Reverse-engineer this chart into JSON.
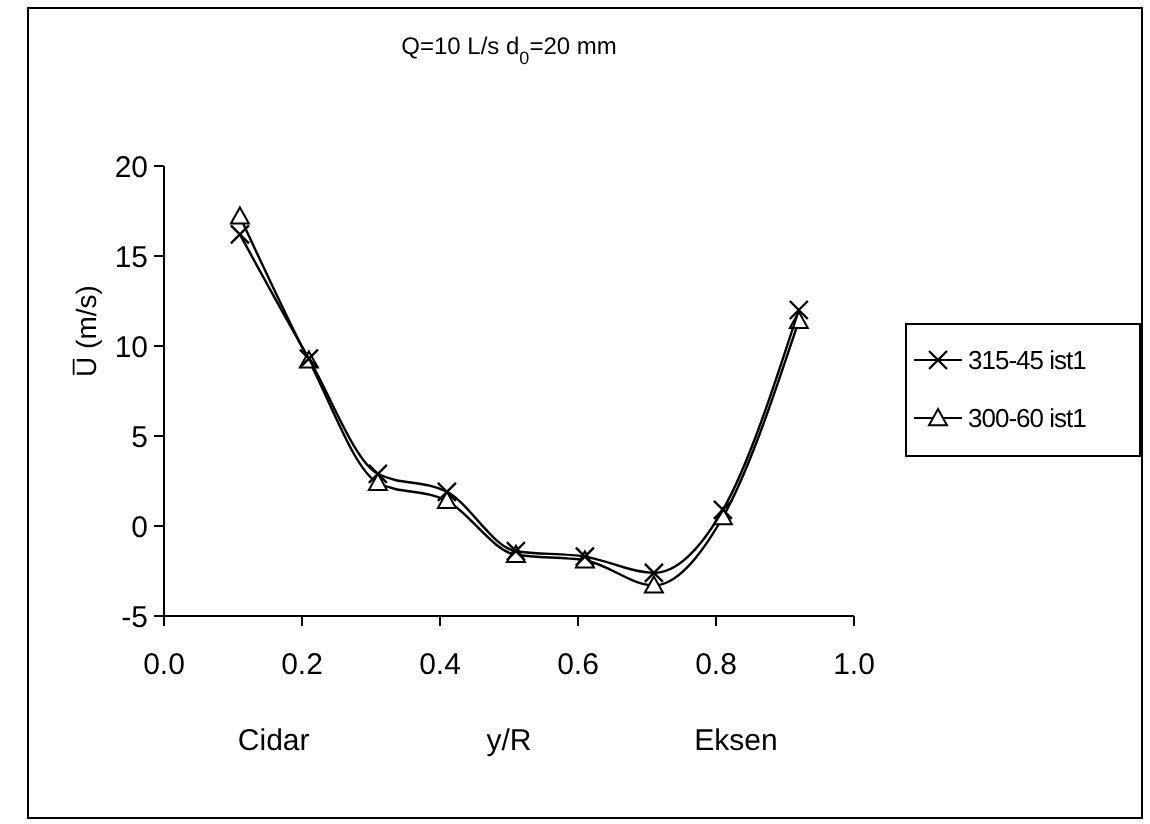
{
  "chart_data": {
    "type": "line",
    "title": "Q=10 L/s  d$_{0}$=20 mm",
    "xlabel": "y/R",
    "ylabel": "U̅ (m/s)",
    "annotations": [
      "Cidar",
      "Eksen"
    ],
    "x": [
      0.11,
      0.21,
      0.31,
      0.41,
      0.51,
      0.61,
      0.71,
      0.81,
      0.92
    ],
    "series": [
      {
        "name": "315-45 ist1",
        "color": "#000000",
        "marker": "cross",
        "values": [
          16.2,
          9.3,
          2.9,
          1.9,
          -1.4,
          -1.7,
          -2.6,
          0.9,
          12.0
        ]
      },
      {
        "name": "300-60 ist1",
        "color": "#000000",
        "marker": "triangle",
        "values": [
          17.2,
          9.2,
          2.4,
          1.4,
          -1.6,
          -1.9,
          -3.3,
          0.5,
          11.4
        ]
      }
    ],
    "xlim": [
      0,
      1
    ],
    "xticks": [
      {
        "value": 0,
        "label": "0.0"
      },
      {
        "value": 0.2,
        "label": "0.2"
      },
      {
        "value": 0.4,
        "label": "0.4"
      },
      {
        "value": 0.6,
        "label": "0.6"
      },
      {
        "value": 0.8,
        "label": "0.8"
      },
      {
        "value": 1,
        "label": "1.0"
      }
    ],
    "ylim": [
      -5,
      20
    ],
    "yticks": [
      -5,
      0,
      5,
      10,
      15,
      20
    ],
    "grid": false,
    "legend": "right",
    "line_style": "solid"
  }
}
